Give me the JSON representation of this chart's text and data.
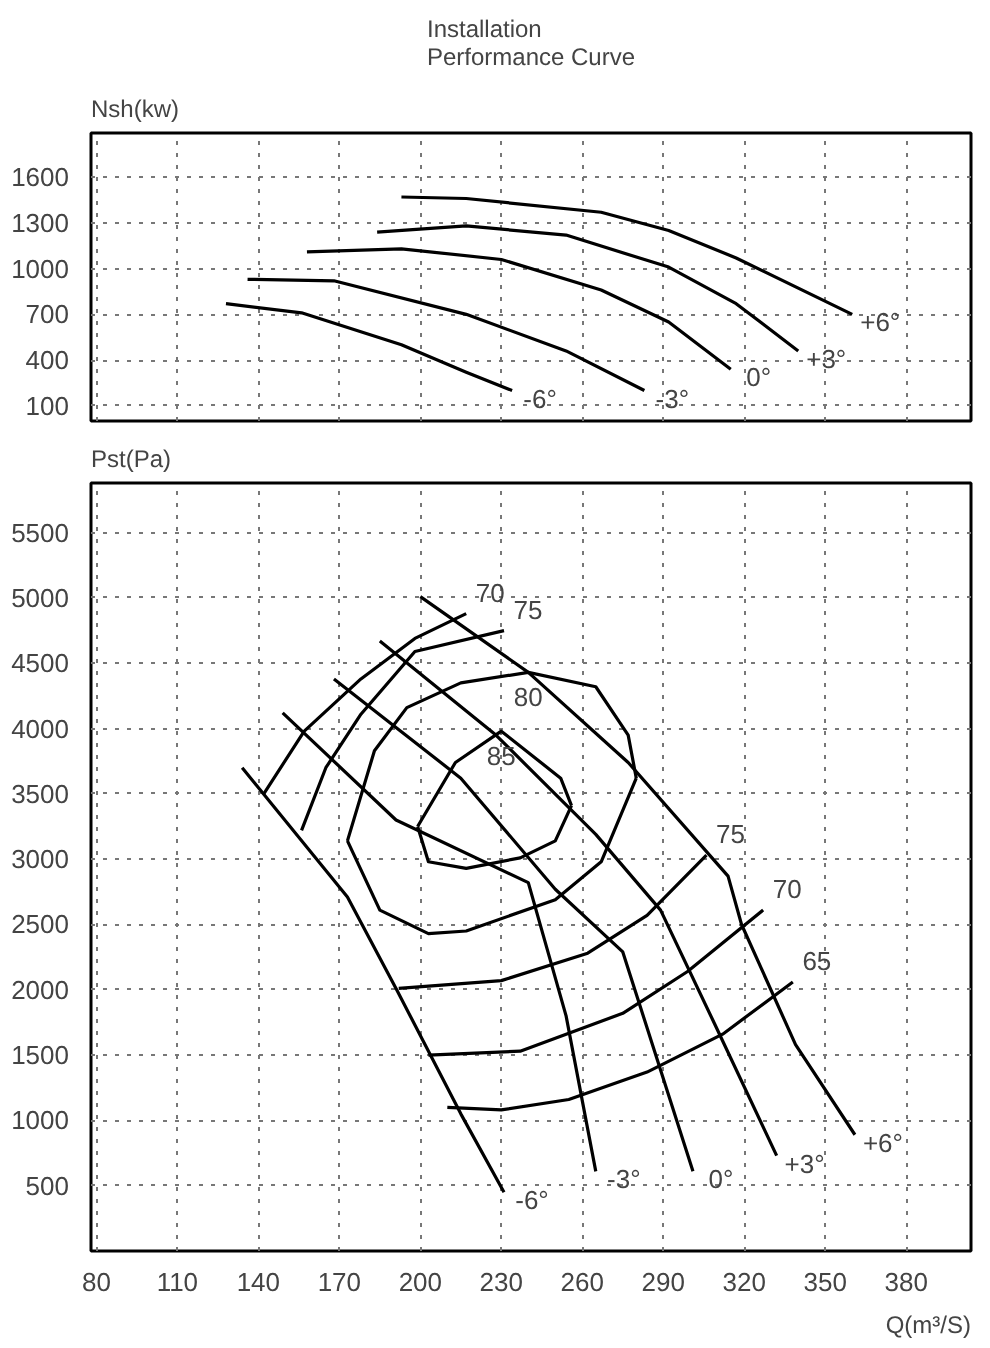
{
  "chart_data": [
    {
      "type": "line",
      "title": "Installation\nPerformance Curve",
      "ylabel": "Nsh(kw)",
      "xlim": [
        78,
        404
      ],
      "ylim": [
        0,
        1890
      ],
      "xticks": [
        80,
        110,
        140,
        170,
        200,
        230,
        260,
        290,
        320,
        350,
        380
      ],
      "yticks": [
        100,
        400,
        700,
        1000,
        1300,
        1600
      ],
      "tick_labels": "y",
      "grid": true,
      "series": [
        {
          "name": "+6°",
          "color": "#000000",
          "x": [
            193,
            217,
            267,
            292,
            317,
            360
          ],
          "values": [
            1470,
            1460,
            1370,
            1250,
            1070,
            700
          ]
        },
        {
          "name": "+3°",
          "color": "#000000",
          "x": [
            184,
            217,
            254,
            292,
            317,
            340
          ],
          "values": [
            1240,
            1280,
            1220,
            1010,
            770,
            460
          ]
        },
        {
          "name": "0°",
          "color": "#000000",
          "x": [
            158,
            193,
            230,
            267,
            292,
            315
          ],
          "values": [
            1110,
            1130,
            1060,
            860,
            650,
            340
          ]
        },
        {
          "name": "-3°",
          "color": "#000000",
          "x": [
            136,
            168,
            217,
            254,
            283
          ],
          "values": [
            930,
            920,
            700,
            460,
            200
          ]
        },
        {
          "name": "-6°",
          "color": "#000000",
          "x": [
            128,
            156,
            193,
            217,
            234
          ],
          "values": [
            770,
            710,
            500,
            320,
            200
          ]
        }
      ]
    },
    {
      "type": "line",
      "ylabel": "Pst(Pa)",
      "xlabel": "Q(m³/S)",
      "xlim": [
        78,
        404
      ],
      "ylim": [
        0,
        5880
      ],
      "xticks": [
        80,
        110,
        140,
        170,
        200,
        230,
        260,
        290,
        320,
        350,
        380
      ],
      "yticks": [
        500,
        1000,
        1500,
        2000,
        2500,
        3000,
        3500,
        4000,
        4500,
        5000,
        5500
      ],
      "grid": true,
      "series": [
        {
          "name": "+6°",
          "color": "#000000",
          "x": [
            200,
            240,
            277,
            314,
            319,
            339,
            361
          ],
          "values": [
            5010,
            4430,
            3740,
            2870,
            2500,
            1580,
            890
          ]
        },
        {
          "name": "+3°",
          "color": "#000000",
          "x": [
            185,
            228,
            265,
            289,
            309,
            332
          ],
          "values": [
            4670,
            3950,
            3190,
            2610,
            1740,
            730
          ]
        },
        {
          "name": "0°",
          "color": "#000000",
          "x": [
            168,
            215,
            250,
            275,
            301
          ],
          "values": [
            4380,
            3620,
            2770,
            2290,
            610
          ]
        },
        {
          "name": "-3°",
          "color": "#000000",
          "x": [
            149,
            191,
            240,
            254,
            265
          ],
          "values": [
            4120,
            3300,
            2820,
            1800,
            610
          ]
        },
        {
          "name": "-6°",
          "color": "#000000",
          "x": [
            134,
            173,
            191,
            215,
            231
          ],
          "values": [
            3700,
            2710,
            2010,
            1050,
            450
          ]
        },
        {
          "name": "70",
          "color": "#000000",
          "x": [
            142,
            157,
            178,
            198,
            217
          ],
          "values": [
            3500,
            3980,
            4380,
            4690,
            4880
          ]
        },
        {
          "name": "75",
          "color": "#000000",
          "x": [
            156,
            165,
            178,
            198,
            231
          ],
          "values": [
            3220,
            3700,
            4110,
            4590,
            4750
          ]
        },
        {
          "name": "80",
          "color": "#000000",
          "x": [
            173,
            183,
            195,
            215,
            240,
            265,
            277,
            280
          ],
          "values": [
            3140,
            3830,
            4160,
            4350,
            4430,
            4320,
            3950,
            3620
          ]
        },
        {
          "color": "#000000",
          "x": [
            173,
            185,
            203,
            217,
            250,
            267,
            280
          ],
          "values": [
            3140,
            2610,
            2430,
            2450,
            2690,
            2980,
            3620
          ]
        },
        {
          "name": "85",
          "color": "#000000",
          "x": [
            199,
            213,
            230,
            252,
            256
          ],
          "values": [
            3250,
            3740,
            3980,
            3620,
            3410
          ]
        },
        {
          "color": "#000000",
          "x": [
            199,
            203,
            217,
            237,
            250,
            256
          ],
          "values": [
            3250,
            2980,
            2930,
            3010,
            3140,
            3410
          ]
        },
        {
          "name": "75",
          "color": "#000000",
          "x": [
            192,
            230,
            262,
            284,
            306
          ],
          "values": [
            2010,
            2070,
            2280,
            2570,
            3030
          ]
        },
        {
          "name": "70",
          "color": "#000000",
          "x": [
            203,
            237,
            275,
            299,
            327
          ],
          "values": [
            1500,
            1530,
            1820,
            2140,
            2610
          ]
        },
        {
          "name": "65",
          "color": "#000000",
          "x": [
            210,
            230,
            255,
            284,
            312,
            338
          ],
          "values": [
            1100,
            1080,
            1160,
            1370,
            1660,
            2060
          ]
        }
      ]
    }
  ]
}
